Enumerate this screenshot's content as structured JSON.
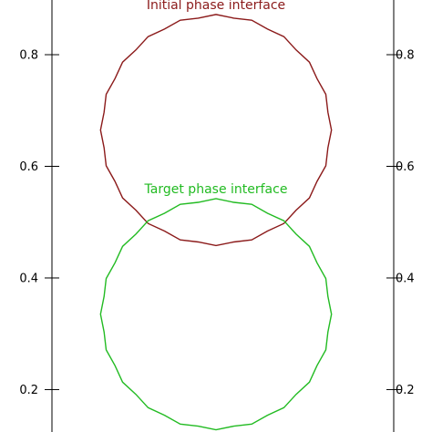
{
  "chart_data": {
    "type": "line",
    "title": "",
    "xlabel": "",
    "ylabel": "",
    "xlim": [
      -0.62,
      0.62
    ],
    "ylim": [
      0.124,
      0.898
    ],
    "y_ticks": [
      0.2,
      0.4,
      0.6,
      0.8
    ],
    "y_tick_labels": [
      "0.2",
      "0.4",
      "0.6",
      "0.8"
    ],
    "grid": false,
    "series": [
      {
        "color": "#8b1a1a",
        "shape": "circle",
        "center": [
          0.0,
          0.665
        ],
        "radius": 0.205,
        "annotation": "Initial phase interface"
      },
      {
        "color": "#22bb22",
        "shape": "circle",
        "center": [
          0.0,
          0.335
        ],
        "radius": 0.205,
        "annotation": "Target phase interface"
      }
    ]
  }
}
